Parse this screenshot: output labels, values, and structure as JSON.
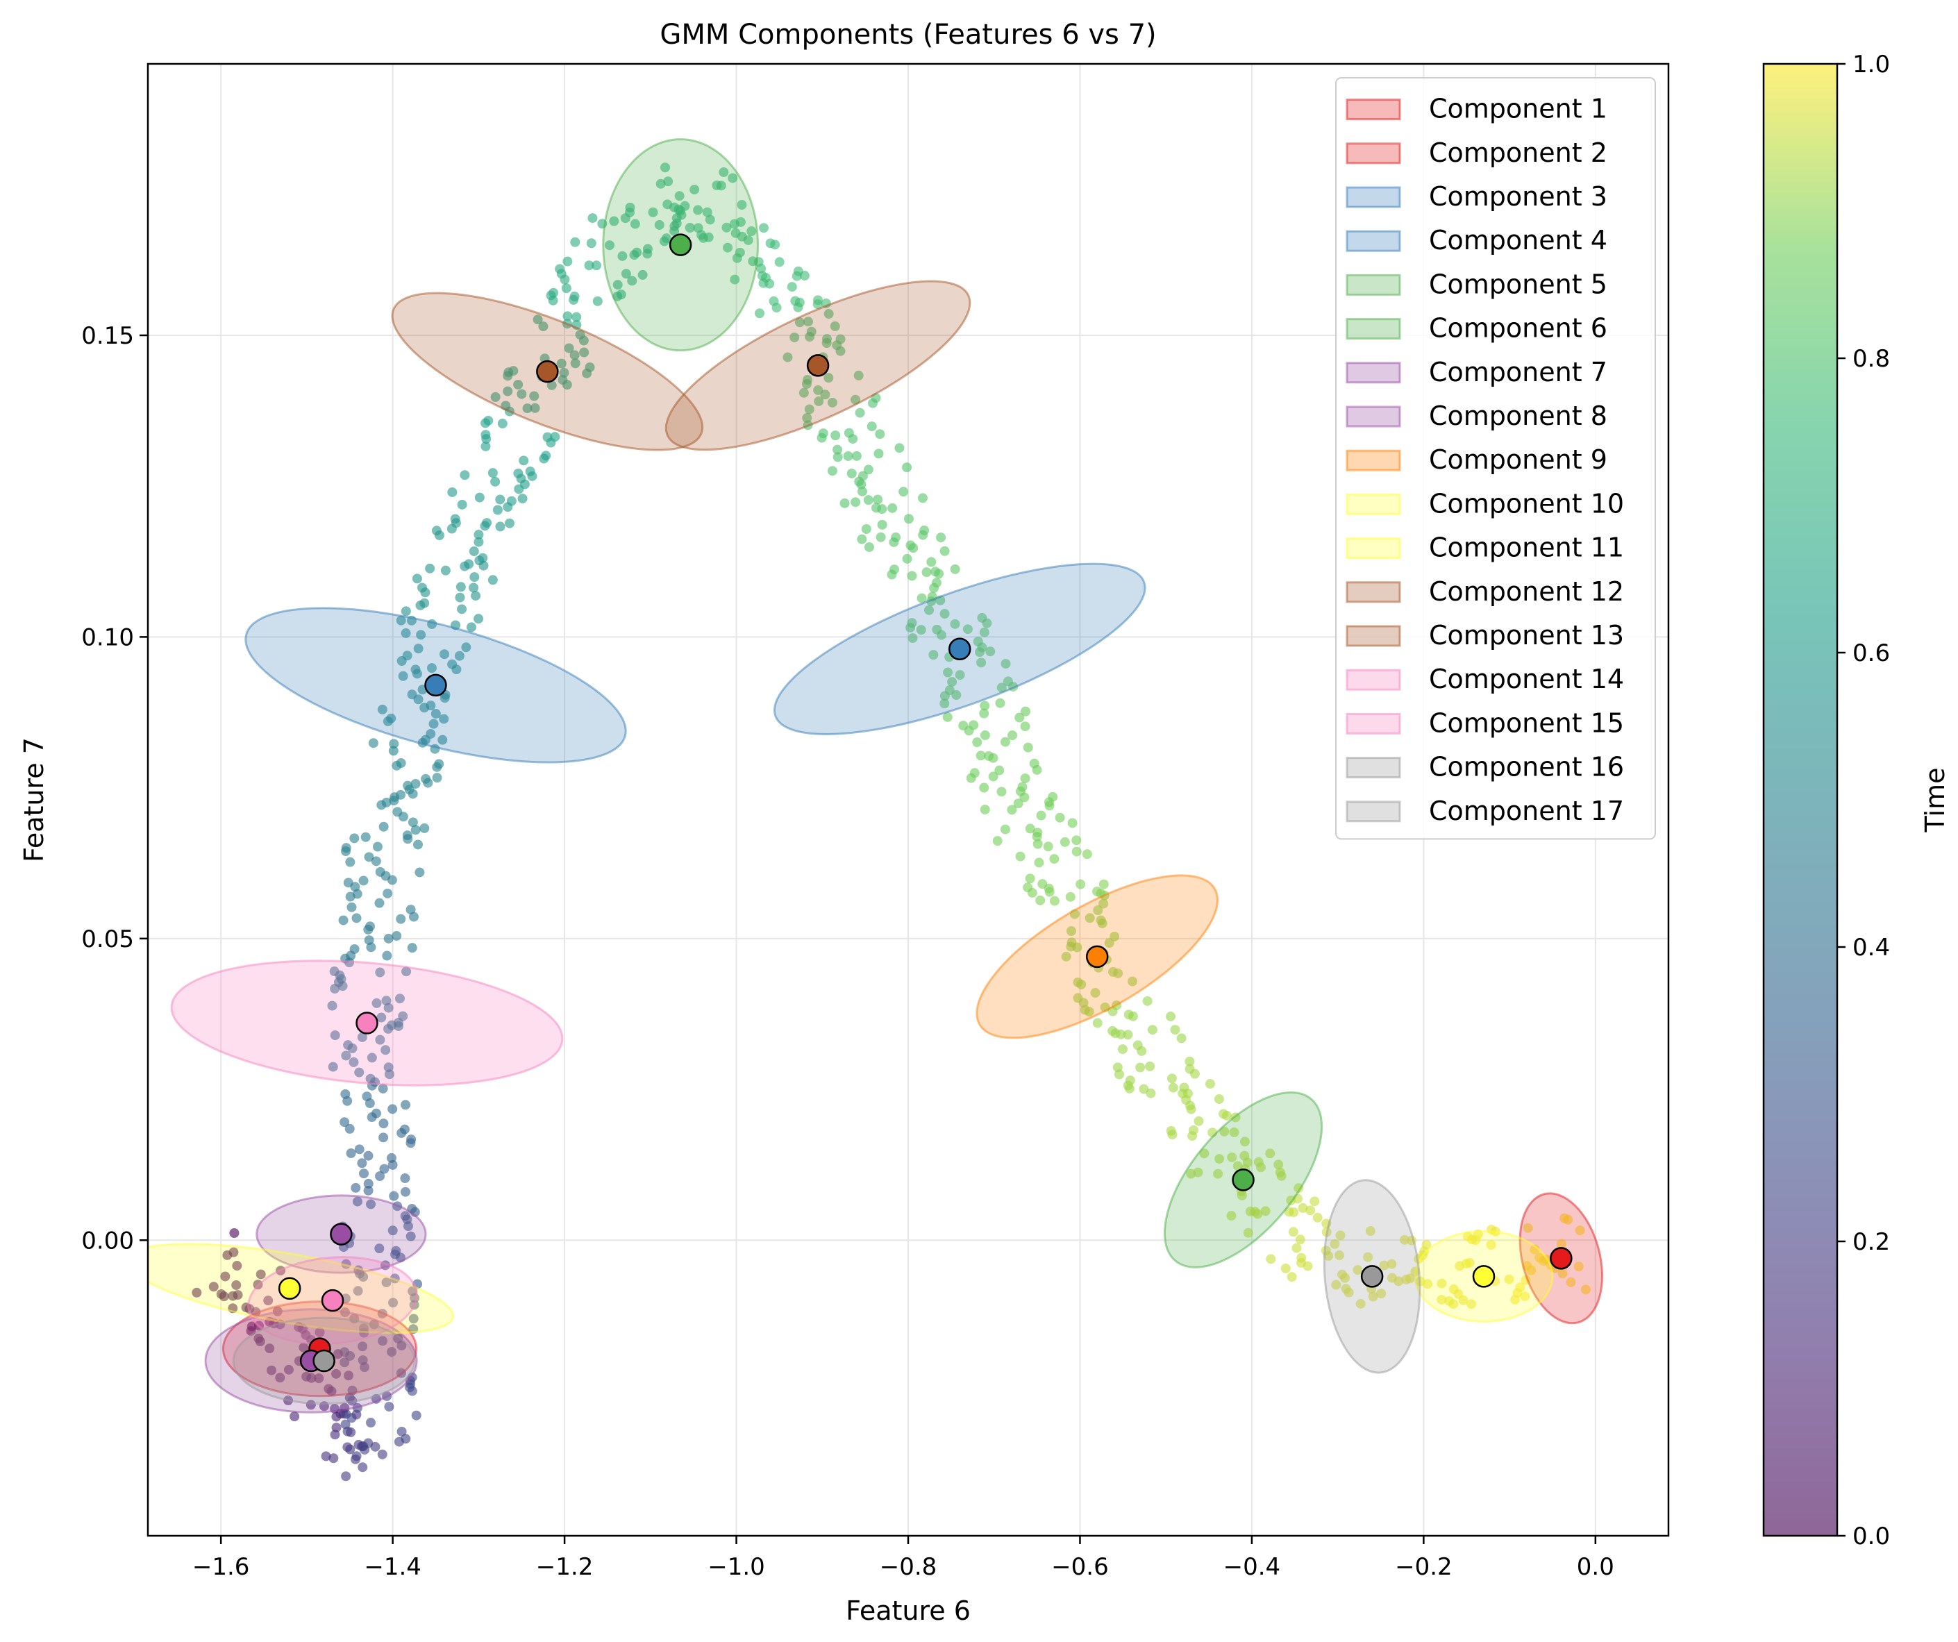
{
  "chart_data": {
    "type": "scatter",
    "title": "GMM Components (Features 6 vs 7)",
    "xlabel": "Feature 6",
    "ylabel": "Feature 7",
    "xlim": [
      -1.685,
      0.085
    ],
    "ylim": [
      -0.049,
      0.195
    ],
    "x_ticks": [
      -1.6,
      -1.4,
      -1.2,
      -1.0,
      -0.8,
      -0.6,
      -0.4,
      -0.2,
      0.0
    ],
    "x_tick_labels": [
      "−1.6",
      "−1.4",
      "−1.2",
      "−1.0",
      "−0.8",
      "−0.6",
      "−0.4",
      "−0.2",
      "0.0"
    ],
    "y_ticks": [
      0.0,
      0.05,
      0.1,
      0.15
    ],
    "y_tick_labels": [
      "0.00",
      "0.05",
      "0.10",
      "0.15"
    ],
    "grid": true,
    "legend_position": "top-right",
    "colorbar": {
      "label": "Time",
      "range": [
        0.0,
        1.0
      ],
      "ticks": [
        0.0,
        0.2,
        0.4,
        0.6,
        0.8,
        1.0
      ],
      "tick_labels": [
        "0.0",
        "0.2",
        "0.4",
        "0.6",
        "0.8",
        "1.0"
      ],
      "colormap": "viridis"
    },
    "trajectory_path": [
      {
        "x": -1.61,
        "y": -0.004,
        "t": 0.0
      },
      {
        "x": -1.53,
        "y": -0.012,
        "t": 0.05
      },
      {
        "x": -1.47,
        "y": -0.03,
        "t": 0.12
      },
      {
        "x": -1.42,
        "y": -0.036,
        "t": 0.2
      },
      {
        "x": -1.41,
        "y": -0.015,
        "t": 0.28
      },
      {
        "x": -1.42,
        "y": 0.01,
        "t": 0.35
      },
      {
        "x": -1.43,
        "y": 0.036,
        "t": 0.42
      },
      {
        "x": -1.41,
        "y": 0.065,
        "t": 0.48
      },
      {
        "x": -1.37,
        "y": 0.092,
        "t": 0.54
      },
      {
        "x": -1.3,
        "y": 0.12,
        "t": 0.6
      },
      {
        "x": -1.22,
        "y": 0.144,
        "t": 0.66
      },
      {
        "x": -1.14,
        "y": 0.165,
        "t": 0.7
      },
      {
        "x": -1.06,
        "y": 0.175,
        "t": 0.73
      },
      {
        "x": -0.98,
        "y": 0.165,
        "t": 0.76
      },
      {
        "x": -0.9,
        "y": 0.145,
        "t": 0.79
      },
      {
        "x": -0.82,
        "y": 0.12,
        "t": 0.82
      },
      {
        "x": -0.74,
        "y": 0.098,
        "t": 0.85
      },
      {
        "x": -0.66,
        "y": 0.07,
        "t": 0.875
      },
      {
        "x": -0.58,
        "y": 0.047,
        "t": 0.9
      },
      {
        "x": -0.5,
        "y": 0.025,
        "t": 0.92
      },
      {
        "x": -0.41,
        "y": 0.01,
        "t": 0.94
      },
      {
        "x": -0.32,
        "y": -0.003,
        "t": 0.96
      },
      {
        "x": -0.2,
        "y": -0.007,
        "t": 0.975
      },
      {
        "x": -0.1,
        "y": -0.004,
        "t": 0.99
      },
      {
        "x": -0.01,
        "y": -0.002,
        "t": 1.0
      }
    ],
    "components": [
      {
        "name": "Component 1",
        "color": "#e41a1c",
        "mean": [
          -1.485,
          -0.018
        ],
        "width": 0.11,
        "height": 0.032,
        "angle": 90
      },
      {
        "name": "Component 2",
        "color": "#e41a1c",
        "mean": [
          -0.04,
          -0.003
        ],
        "width": 0.09,
        "height": 0.022,
        "angle": 15
      },
      {
        "name": "Component 3",
        "color": "#377eb8",
        "mean": [
          -1.35,
          0.092
        ],
        "width": 0.14,
        "height": 0.065,
        "angle": 75
      },
      {
        "name": "Component 4",
        "color": "#377eb8",
        "mean": [
          -0.74,
          0.098
        ],
        "width": 0.13,
        "height": 0.065,
        "angle": -70
      },
      {
        "name": "Component 5",
        "color": "#4daf4a",
        "mean": [
          -1.065,
          0.165
        ],
        "width": 0.18,
        "height": 0.035,
        "angle": 0
      },
      {
        "name": "Component 6",
        "color": "#4daf4a",
        "mean": [
          -0.41,
          0.01
        ],
        "width": 0.12,
        "height": 0.035,
        "angle": -40
      },
      {
        "name": "Component 7",
        "color": "#984ea3",
        "mean": [
          -1.495,
          -0.02
        ],
        "width": 0.12,
        "height": 0.035,
        "angle": 90
      },
      {
        "name": "Component 8",
        "color": "#984ea3",
        "mean": [
          -1.46,
          0.001
        ],
        "width": 0.09,
        "height": 0.028,
        "angle": 90
      },
      {
        "name": "Component 9",
        "color": "#ff7f00",
        "mean": [
          -0.58,
          0.047
        ],
        "width": 0.12,
        "height": 0.045,
        "angle": -60
      },
      {
        "name": "Component 10",
        "color": "#ffff33",
        "mean": [
          -1.52,
          -0.008
        ],
        "width": 0.08,
        "height": 0.055,
        "angle": 80
      },
      {
        "name": "Component 11",
        "color": "#ffff33",
        "mean": [
          -0.13,
          -0.006
        ],
        "width": 0.16,
        "height": 0.015,
        "angle": 0
      },
      {
        "name": "Component 12",
        "color": "#a65628",
        "mean": [
          -1.22,
          0.144
        ],
        "width": 0.12,
        "height": 0.055,
        "angle": 68
      },
      {
        "name": "Component 13",
        "color": "#a65628",
        "mean": [
          -0.905,
          0.145
        ],
        "width": 0.12,
        "height": 0.055,
        "angle": -65
      },
      {
        "name": "Component 14",
        "color": "#f781bf",
        "mean": [
          -1.43,
          0.036
        ],
        "width": 0.14,
        "height": 0.065,
        "angle": 85
      },
      {
        "name": "Component 15",
        "color": "#f781bf",
        "mean": [
          -1.47,
          -0.01
        ],
        "width": 0.1,
        "height": 0.028,
        "angle": 95
      },
      {
        "name": "Component 16",
        "color": "#999999",
        "mean": [
          -0.26,
          -0.006
        ],
        "width": 0.11,
        "height": 0.032,
        "angle": 5
      },
      {
        "name": "Component 17",
        "color": "#999999",
        "mean": [
          -1.48,
          -0.02
        ],
        "width": 0.1,
        "height": 0.03,
        "angle": 90
      }
    ]
  }
}
